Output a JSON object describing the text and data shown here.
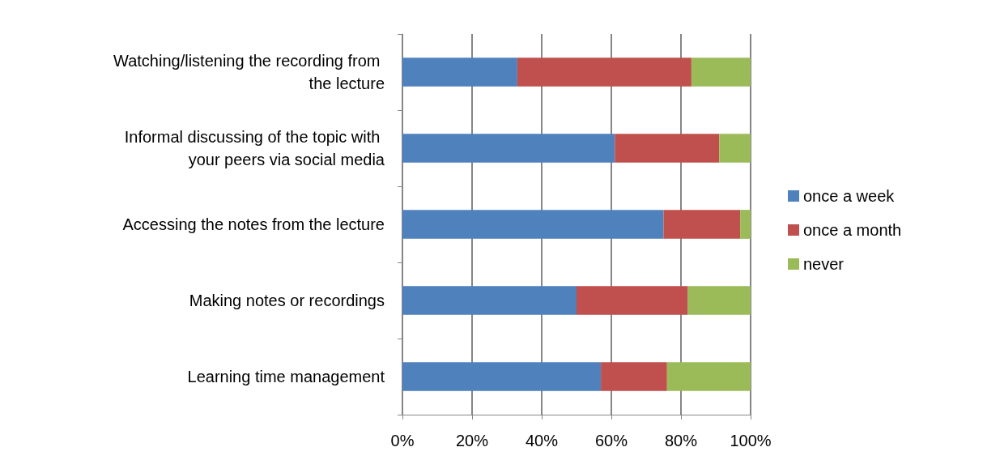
{
  "chart_data": {
    "type": "bar",
    "orientation": "horizontal",
    "stacked": true,
    "categories": [
      "Watching/listening the recording from the lecture",
      "Informal discussing of the topic with your peers via social media",
      "Accessing the notes from the lecture",
      "Making notes or recordings",
      "Learning time management"
    ],
    "series": [
      {
        "name": "once a week",
        "color": "#4f81bd",
        "values": [
          33,
          61,
          75,
          50,
          57
        ]
      },
      {
        "name": "once a month",
        "color": "#c0504d",
        "values": [
          50,
          30,
          22,
          32,
          19
        ]
      },
      {
        "name": "never",
        "color": "#9bbb59",
        "values": [
          17,
          9,
          3,
          18,
          24
        ]
      }
    ],
    "xlim": [
      0,
      100
    ],
    "xticks": [
      {
        "value": 0,
        "label": "0%"
      },
      {
        "value": 20,
        "label": "20%"
      },
      {
        "value": 40,
        "label": "40%"
      },
      {
        "value": 60,
        "label": "60%"
      },
      {
        "value": 80,
        "label": "80%"
      },
      {
        "value": 100,
        "label": "100%"
      }
    ],
    "grid": "x",
    "legend": "right"
  }
}
